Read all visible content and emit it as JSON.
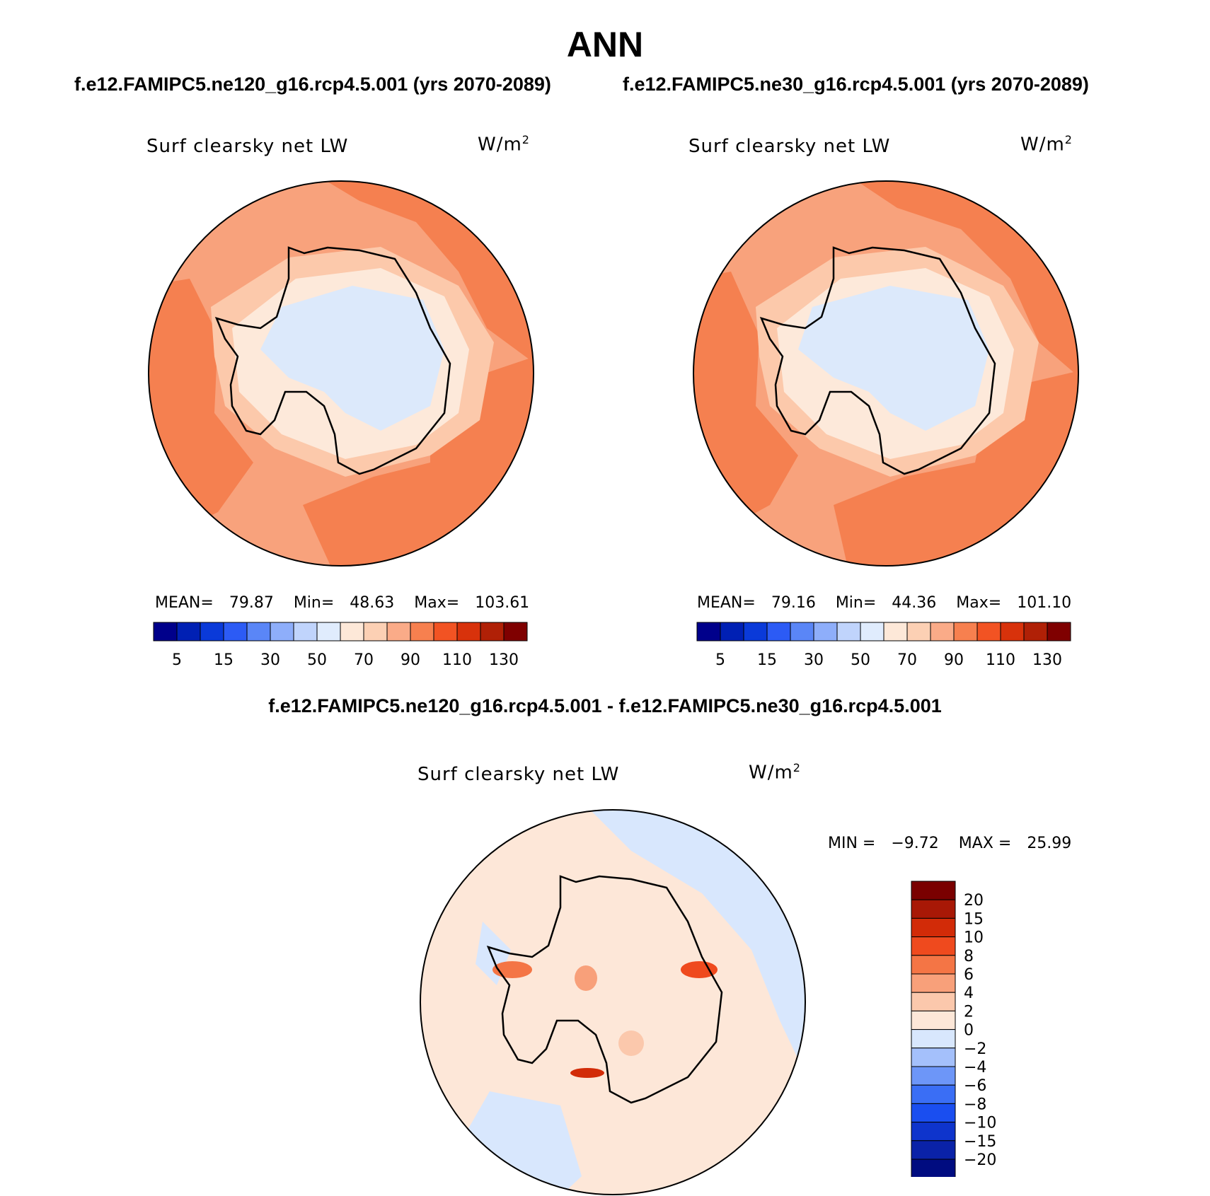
{
  "title": "ANN",
  "left_panel": {
    "run_title": "f.e12.FAMIPC5.ne120_g16.rcp4.5.001 (yrs 2070-2089)",
    "variable": "Surf clearsky net LW",
    "units_text": "W/m",
    "units_sup": "2",
    "mean_label": "MEAN=",
    "mean": "79.87",
    "min_label": "Min=",
    "min": "48.63",
    "max_label": "Max=",
    "max": "103.61"
  },
  "right_panel": {
    "run_title": "f.e12.FAMIPC5.ne30_g16.rcp4.5.001 (yrs 2070-2089)",
    "variable": "Surf clearsky net LW",
    "units_text": "W/m",
    "units_sup": "2",
    "mean_label": "MEAN=",
    "mean": "79.16",
    "min_label": "Min=",
    "min": "44.36",
    "max_label": "Max=",
    "max": "101.10"
  },
  "diff_panel": {
    "title": "f.e12.FAMIPC5.ne120_g16.rcp4.5.001 - f.e12.FAMIPC5.ne30_g16.rcp4.5.001",
    "variable": "Surf clearsky net LW",
    "units_text": "W/m",
    "units_sup": "2",
    "min_label": "MIN =",
    "min": "−9.72",
    "max_label": "MAX =",
    "max": "25.99"
  },
  "abs_colorbar": {
    "colors": [
      "#00008b",
      "#0020b4",
      "#0a3ad9",
      "#2c5bf5",
      "#5a86f7",
      "#8eaefa",
      "#c0d4fc",
      "#e0ecfd",
      "#fde8d8",
      "#fcd0b4",
      "#faab88",
      "#f7804f",
      "#f25323",
      "#d8320b",
      "#b02006",
      "#7f0000"
    ],
    "tick_labels": [
      "5",
      "15",
      "30",
      "50",
      "70",
      "90",
      "110",
      "130"
    ]
  },
  "diff_colorbar": {
    "colors": [
      "#000c80",
      "#0a22a8",
      "#0e34cc",
      "#1a4ef0",
      "#3a6ef5",
      "#6d96f8",
      "#a4c0fb",
      "#d8e7fd",
      "#fde7d8",
      "#fbc8ac",
      "#f8a07a",
      "#f47545",
      "#ef4a1e",
      "#d22b08",
      "#a81806",
      "#7a0000"
    ],
    "tick_labels": [
      "20",
      "15",
      "10",
      "8",
      "6",
      "4",
      "2",
      "0",
      "−2",
      "−4",
      "−6",
      "−8",
      "−10",
      "−15",
      "−20"
    ]
  }
}
